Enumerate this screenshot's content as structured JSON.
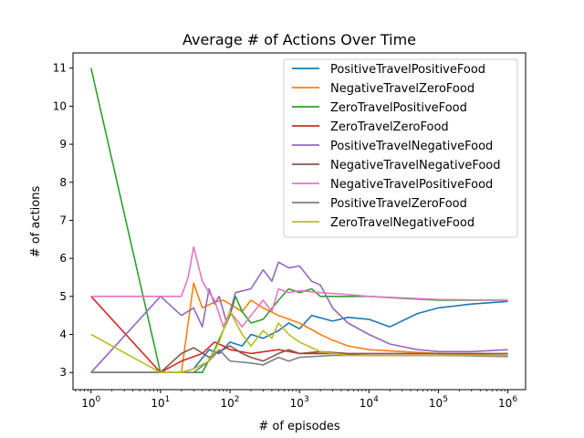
{
  "chart_data": {
    "type": "line",
    "title": "Average # of Actions Over Time",
    "xlabel": "# of episodes",
    "ylabel": "# of actions",
    "xscale": "log",
    "xlim": [
      0.55,
      1800000
    ],
    "ylim": [
      2.55,
      11.4
    ],
    "grid": false,
    "legend_position": "top-right",
    "x_ticks": [
      {
        "value": 1,
        "base": "10",
        "exp": "0"
      },
      {
        "value": 10,
        "base": "10",
        "exp": "1"
      },
      {
        "value": 100,
        "base": "10",
        "exp": "2"
      },
      {
        "value": 1000,
        "base": "10",
        "exp": "3"
      },
      {
        "value": 10000,
        "base": "10",
        "exp": "4"
      },
      {
        "value": 100000,
        "base": "10",
        "exp": "5"
      },
      {
        "value": 1000000,
        "base": "10",
        "exp": "6"
      }
    ],
    "y_ticks": [
      {
        "value": 3,
        "label": "3"
      },
      {
        "value": 4,
        "label": "4"
      },
      {
        "value": 5,
        "label": "5"
      },
      {
        "value": 6,
        "label": "6"
      },
      {
        "value": 7,
        "label": "7"
      },
      {
        "value": 8,
        "label": "8"
      },
      {
        "value": 9,
        "label": "9"
      },
      {
        "value": 10,
        "label": "10"
      },
      {
        "value": 11,
        "label": "11"
      }
    ],
    "series": [
      {
        "name": "PositiveTravelPositiveFood",
        "color": "#1f77b4",
        "points": [
          [
            1,
            3
          ],
          [
            10,
            3
          ],
          [
            20,
            3
          ],
          [
            30,
            3.1
          ],
          [
            50,
            3.6
          ],
          [
            70,
            3.5
          ],
          [
            100,
            3.8
          ],
          [
            150,
            3.7
          ],
          [
            200,
            4
          ],
          [
            300,
            3.9
          ],
          [
            500,
            4.1
          ],
          [
            700,
            4.3
          ],
          [
            1000,
            4.15
          ],
          [
            1500,
            4.5
          ],
          [
            3000,
            4.35
          ],
          [
            5000,
            4.45
          ],
          [
            10000,
            4.4
          ],
          [
            20000,
            4.2
          ],
          [
            50000,
            4.55
          ],
          [
            100000,
            4.7
          ],
          [
            300000,
            4.8
          ],
          [
            1000000,
            4.87
          ]
        ]
      },
      {
        "name": "NegativeTravelZeroFood",
        "color": "#ff7f0e",
        "points": [
          [
            1,
            3
          ],
          [
            20,
            3
          ],
          [
            25,
            4.3
          ],
          [
            30,
            5.35
          ],
          [
            40,
            4.7
          ],
          [
            60,
            4.85
          ],
          [
            80,
            4.9
          ],
          [
            100,
            4.8
          ],
          [
            150,
            4.6
          ],
          [
            200,
            4.9
          ],
          [
            300,
            4.7
          ],
          [
            500,
            4.5
          ],
          [
            1000,
            4.3
          ],
          [
            2000,
            4.0
          ],
          [
            3000,
            3.85
          ],
          [
            5000,
            3.7
          ],
          [
            10000,
            3.6
          ],
          [
            30000,
            3.55
          ],
          [
            100000,
            3.5
          ],
          [
            1000000,
            3.45
          ]
        ]
      },
      {
        "name": "ZeroTravelPositiveFood",
        "color": "#2ca02c",
        "points": [
          [
            1,
            11
          ],
          [
            10,
            3
          ],
          [
            40,
            3
          ],
          [
            60,
            3.6
          ],
          [
            100,
            4.5
          ],
          [
            120,
            5
          ],
          [
            150,
            4.6
          ],
          [
            200,
            4.3
          ],
          [
            300,
            4.4
          ],
          [
            500,
            4.9
          ],
          [
            700,
            5.2
          ],
          [
            1000,
            5.1
          ],
          [
            1500,
            5.2
          ],
          [
            2000,
            5.0
          ],
          [
            5000,
            5.0
          ],
          [
            10000,
            5.0
          ],
          [
            30000,
            4.95
          ],
          [
            100000,
            4.9
          ],
          [
            1000000,
            4.9
          ]
        ]
      },
      {
        "name": "ZeroTravelZeroFood",
        "color": "#d62728",
        "points": [
          [
            1,
            5
          ],
          [
            10,
            3
          ],
          [
            20,
            3.3
          ],
          [
            40,
            3.5
          ],
          [
            60,
            3.8
          ],
          [
            80,
            3.7
          ],
          [
            100,
            3.6
          ],
          [
            200,
            3.5
          ],
          [
            500,
            3.6
          ],
          [
            1000,
            3.5
          ],
          [
            3000,
            3.5
          ],
          [
            10000,
            3.45
          ],
          [
            100000,
            3.45
          ],
          [
            1000000,
            3.45
          ]
        ]
      },
      {
        "name": "PositiveTravelNegativeFood",
        "color": "#9467bd",
        "points": [
          [
            1,
            3
          ],
          [
            10,
            5
          ],
          [
            20,
            4.5
          ],
          [
            30,
            4.7
          ],
          [
            40,
            4.2
          ],
          [
            50,
            5.2
          ],
          [
            60,
            4.8
          ],
          [
            70,
            5.0
          ],
          [
            90,
            4.3
          ],
          [
            120,
            5.1
          ],
          [
            200,
            5.2
          ],
          [
            300,
            5.7
          ],
          [
            400,
            5.4
          ],
          [
            500,
            5.9
          ],
          [
            700,
            5.75
          ],
          [
            1000,
            5.8
          ],
          [
            1500,
            5.4
          ],
          [
            2000,
            5.3
          ],
          [
            3000,
            4.7
          ],
          [
            5000,
            4.3
          ],
          [
            10000,
            4.0
          ],
          [
            20000,
            3.75
          ],
          [
            50000,
            3.6
          ],
          [
            100000,
            3.55
          ],
          [
            300000,
            3.55
          ],
          [
            1000000,
            3.6
          ]
        ]
      },
      {
        "name": "NegativeTravelNegativeFood",
        "color": "#8c564b",
        "points": [
          [
            1,
            3
          ],
          [
            10,
            3
          ],
          [
            20,
            3.5
          ],
          [
            30,
            3.65
          ],
          [
            50,
            3.4
          ],
          [
            100,
            3.7
          ],
          [
            150,
            3.5
          ],
          [
            200,
            3.4
          ],
          [
            300,
            3.3
          ],
          [
            500,
            3.5
          ],
          [
            700,
            3.6
          ],
          [
            1000,
            3.5
          ],
          [
            2000,
            3.55
          ],
          [
            5000,
            3.5
          ],
          [
            10000,
            3.5
          ],
          [
            100000,
            3.5
          ],
          [
            1000000,
            3.5
          ]
        ]
      },
      {
        "name": "NegativeTravelPositiveFood",
        "color": "#e377c2",
        "points": [
          [
            1,
            5
          ],
          [
            10,
            5
          ],
          [
            20,
            5
          ],
          [
            25,
            5.5
          ],
          [
            30,
            6.3
          ],
          [
            40,
            5.4
          ],
          [
            50,
            5.1
          ],
          [
            60,
            4.9
          ],
          [
            80,
            4.2
          ],
          [
            100,
            4.6
          ],
          [
            150,
            4.2
          ],
          [
            200,
            4.5
          ],
          [
            300,
            4.9
          ],
          [
            400,
            4.6
          ],
          [
            500,
            5.2
          ],
          [
            700,
            5.1
          ],
          [
            1000,
            5.15
          ],
          [
            2000,
            5.1
          ],
          [
            5000,
            5.05
          ],
          [
            10000,
            5.0
          ],
          [
            100000,
            4.92
          ],
          [
            1000000,
            4.9
          ]
        ]
      },
      {
        "name": "PositiveTravelZeroFood",
        "color": "#7f7f7f",
        "points": [
          [
            1,
            3
          ],
          [
            10,
            3
          ],
          [
            20,
            3
          ],
          [
            30,
            3
          ],
          [
            50,
            3.3
          ],
          [
            70,
            3.6
          ],
          [
            100,
            3.3
          ],
          [
            200,
            3.25
          ],
          [
            300,
            3.2
          ],
          [
            500,
            3.4
          ],
          [
            700,
            3.3
          ],
          [
            1000,
            3.4
          ],
          [
            3000,
            3.45
          ],
          [
            10000,
            3.45
          ],
          [
            100000,
            3.45
          ],
          [
            1000000,
            3.42
          ]
        ]
      },
      {
        "name": "ZeroTravelNegativeFood",
        "color": "#bcbd22",
        "points": [
          [
            1,
            4
          ],
          [
            10,
            3
          ],
          [
            20,
            3
          ],
          [
            30,
            3.1
          ],
          [
            50,
            3.3
          ],
          [
            70,
            3.8
          ],
          [
            100,
            4.6
          ],
          [
            150,
            4.0
          ],
          [
            200,
            3.7
          ],
          [
            300,
            4.1
          ],
          [
            400,
            3.9
          ],
          [
            500,
            4.3
          ],
          [
            700,
            4.0
          ],
          [
            1000,
            3.8
          ],
          [
            2000,
            3.55
          ],
          [
            5000,
            3.45
          ],
          [
            10000,
            3.45
          ],
          [
            100000,
            3.45
          ],
          [
            1000000,
            3.45
          ]
        ]
      }
    ]
  }
}
